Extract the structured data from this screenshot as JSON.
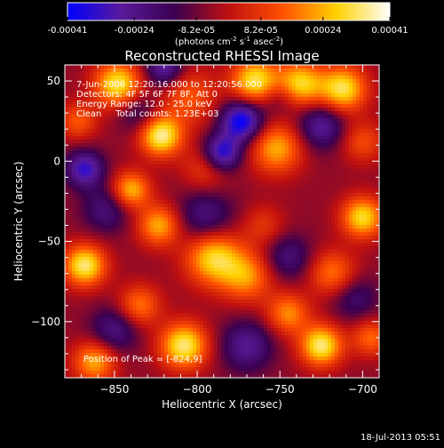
{
  "colorbar": {
    "tick_labels": [
      "-0.00041",
      "-0.00024",
      "-8.2e-05",
      "8.2e-05",
      "0.00024",
      "0.00041"
    ],
    "tick_values": [
      -0.00041,
      -0.00024,
      -8.2e-05,
      8.2e-05,
      0.00024,
      0.00041
    ],
    "range": [
      -0.00041,
      0.00041
    ],
    "units_text": "(photons cm",
    "units_exp1": "-2",
    "units_mid": " s",
    "units_exp2": "-1",
    "units_tail": " asec",
    "units_exp3": "-2",
    "units_close": ")",
    "colors": [
      "#0000ff",
      "#5a1a9a",
      "#3a0050",
      "#c01010",
      "#ff5000",
      "#ffd000",
      "#ffffff"
    ]
  },
  "chart_data": {
    "type": "heatmap",
    "title": "Reconstructed RHESSI Image",
    "xlabel": "Heliocentric X (arcsec)",
    "ylabel": "Heliocentric Y (arcsec)",
    "xlim": [
      -880,
      -690
    ],
    "ylim": [
      -135,
      60
    ],
    "x_ticks": [
      -850,
      -800,
      -750,
      -700
    ],
    "y_ticks": [
      50,
      0,
      -50,
      -100
    ],
    "x_tick_labels": [
      "−850",
      "−800",
      "−750",
      "−700"
    ],
    "y_tick_labels": [
      "50",
      "0",
      "−50",
      "−100"
    ],
    "annotations": [
      "7-Jun-2006 12:20:16.000 to 12:20:56.000",
      "Detectors: 4F 5F 6F 7F 8F, Att 0",
      "Energy Range: 12.0 - 25.0 keV",
      "Clean     Total counts: 1.23E+03"
    ],
    "peak_label": "Position of Peak = [-824,9]",
    "peak_position": [
      -824,
      9
    ],
    "blobs": [
      {
        "x": -822,
        "y": 16,
        "v": 1.0,
        "s": 9
      },
      {
        "x": -848,
        "y": 48,
        "v": 0.9,
        "s": 10
      },
      {
        "x": -805,
        "y": 40,
        "v": 0.45,
        "s": 12
      },
      {
        "x": -765,
        "y": 50,
        "v": 0.9,
        "s": 10
      },
      {
        "x": -738,
        "y": 48,
        "v": 0.85,
        "s": 10
      },
      {
        "x": -712,
        "y": 45,
        "v": 0.9,
        "s": 10
      },
      {
        "x": -752,
        "y": 8,
        "v": 0.7,
        "s": 11
      },
      {
        "x": -795,
        "y": -5,
        "v": 0.35,
        "s": 10
      },
      {
        "x": -840,
        "y": -18,
        "v": 0.75,
        "s": 8
      },
      {
        "x": -823,
        "y": -40,
        "v": 0.7,
        "s": 9
      },
      {
        "x": -868,
        "y": -65,
        "v": 0.95,
        "s": 9
      },
      {
        "x": -790,
        "y": -60,
        "v": 0.85,
        "s": 12
      },
      {
        "x": -770,
        "y": -72,
        "v": 0.6,
        "s": 11
      },
      {
        "x": -700,
        "y": -35,
        "v": 0.85,
        "s": 9
      },
      {
        "x": -718,
        "y": -70,
        "v": 0.55,
        "s": 10
      },
      {
        "x": -745,
        "y": -95,
        "v": 0.6,
        "s": 9
      },
      {
        "x": -725,
        "y": -115,
        "v": 0.95,
        "s": 9
      },
      {
        "x": -808,
        "y": -115,
        "v": 0.95,
        "s": 10
      },
      {
        "x": -835,
        "y": -90,
        "v": 0.55,
        "s": 9
      },
      {
        "x": -862,
        "y": -125,
        "v": 0.7,
        "s": 9
      },
      {
        "x": -872,
        "y": 25,
        "v": 0.45,
        "s": 8
      },
      {
        "x": -760,
        "y": -40,
        "v": 0.3,
        "s": 9
      },
      {
        "x": -700,
        "y": 12,
        "v": 0.4,
        "s": 9
      },
      {
        "x": -695,
        "y": -110,
        "v": 0.5,
        "s": 8
      },
      {
        "x": -773,
        "y": 25,
        "v": -0.9,
        "s": 9
      },
      {
        "x": -785,
        "y": 5,
        "v": -0.8,
        "s": 8
      },
      {
        "x": -820,
        "y": 58,
        "v": -0.6,
        "s": 8
      },
      {
        "x": -868,
        "y": -5,
        "v": -0.7,
        "s": 8
      },
      {
        "x": -725,
        "y": 22,
        "v": -0.55,
        "s": 10
      },
      {
        "x": -855,
        "y": -30,
        "v": -0.4,
        "s": 10
      },
      {
        "x": -795,
        "y": -35,
        "v": -0.45,
        "s": 12
      },
      {
        "x": -745,
        "y": -60,
        "v": -0.4,
        "s": 10
      },
      {
        "x": -770,
        "y": -115,
        "v": -0.5,
        "s": 11
      },
      {
        "x": -850,
        "y": -105,
        "v": -0.45,
        "s": 10
      },
      {
        "x": -705,
        "y": -85,
        "v": -0.35,
        "s": 10
      },
      {
        "x": -835,
        "y": 30,
        "v": -0.35,
        "s": 9
      },
      {
        "x": -750,
        "y": 40,
        "v": -0.3,
        "s": 8
      }
    ]
  },
  "footer": {
    "date": "18-Jul-2013 05:51"
  }
}
